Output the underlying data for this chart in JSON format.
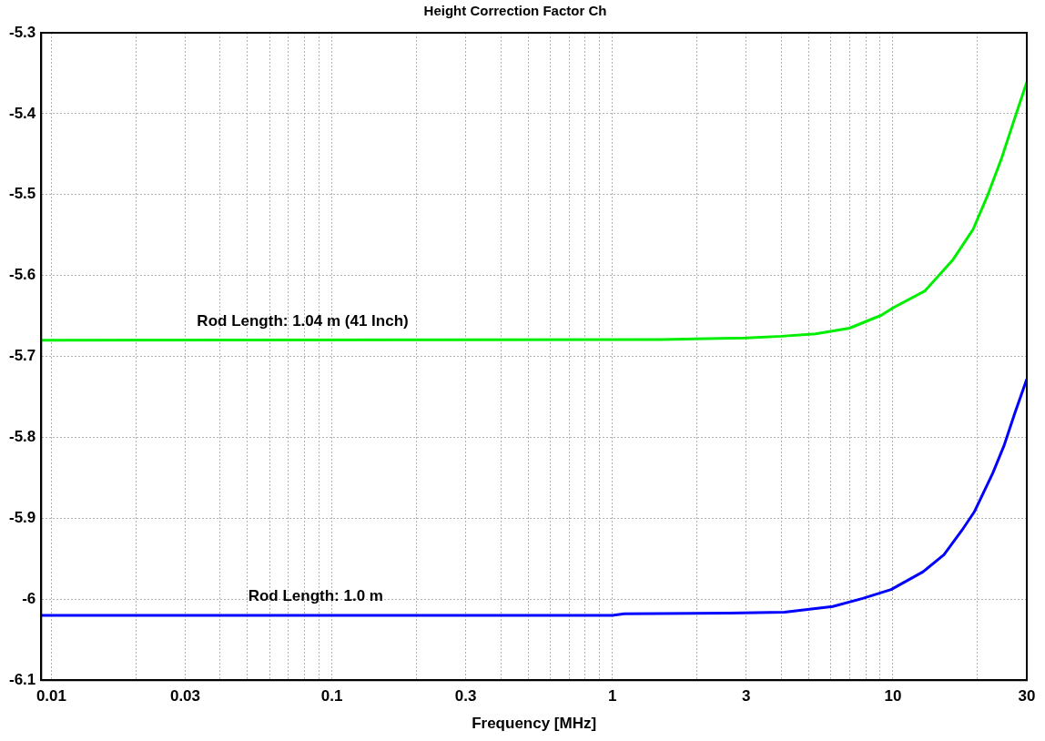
{
  "chart_data": {
    "type": "line",
    "title": "Height Correction Factor Ch",
    "xlabel": "Frequency [MHz]",
    "log": "x",
    "grid": true,
    "marker": "none",
    "line_style": "solid",
    "xlim": [
      0.0092,
      30
    ],
    "xticks": [
      0.01,
      {
        "value": 0.02,
        "label": null
      },
      0.03,
      {
        "value": 0.04,
        "label": null
      },
      {
        "value": 0.05,
        "label": null
      },
      {
        "value": 0.06,
        "label": null
      },
      {
        "value": 0.07,
        "label": null
      },
      {
        "value": 0.08,
        "label": null
      },
      {
        "value": 0.09,
        "label": null
      },
      0.1,
      {
        "value": 0.2,
        "label": null
      },
      0.3,
      {
        "value": 0.4,
        "label": null
      },
      {
        "value": 0.5,
        "label": null
      },
      {
        "value": 0.6,
        "label": null
      },
      {
        "value": 0.7,
        "label": null
      },
      {
        "value": 0.8,
        "label": null
      },
      {
        "value": 0.9,
        "label": null
      },
      1,
      {
        "value": 2,
        "label": null
      },
      3,
      {
        "value": 4,
        "label": null
      },
      {
        "value": 5,
        "label": null
      },
      {
        "value": 6,
        "label": null
      },
      {
        "value": 7,
        "label": null
      },
      {
        "value": 8,
        "label": null
      },
      {
        "value": 9,
        "label": null
      },
      10,
      {
        "value": 20,
        "label": null
      },
      30
    ],
    "ylim": [
      -6.1,
      -5.3
    ],
    "yticks": [
      -6.1,
      -6,
      -5.9,
      -5.8,
      -5.7,
      -5.6,
      -5.5,
      -5.4,
      -5.3
    ],
    "series": [
      {
        "name": "Rod Length: 1.04 m (41 Inch)",
        "color": "#00ee00",
        "x": [
          0.0092,
          1.5,
          3,
          4,
          5.3,
          7,
          9.1,
          10,
          13,
          16.4,
          19.3,
          21.8,
          24.4,
          27.2,
          30
        ],
        "values": [
          -5.68,
          -5.679,
          -5.677,
          -5.675,
          -5.672,
          -5.665,
          -5.649,
          -5.64,
          -5.619,
          -5.58,
          -5.543,
          -5.5,
          -5.455,
          -5.405,
          -5.361
        ]
      },
      {
        "name": "Rod Length: 1.0 m",
        "color": "#0000ff",
        "x": [
          0.0092,
          1,
          1.1,
          2.6,
          4.1,
          6.1,
          7.8,
          9.85,
          12.8,
          15.2,
          17.6,
          19.5,
          22.7,
          24.9,
          27.2,
          30
        ],
        "values": [
          -6.02,
          -6.02,
          -6.018,
          -6.017,
          -6.016,
          -6.009,
          -5.999,
          -5.988,
          -5.966,
          -5.945,
          -5.915,
          -5.892,
          -5.844,
          -5.81,
          -5.77,
          -5.728
        ]
      }
    ]
  }
}
